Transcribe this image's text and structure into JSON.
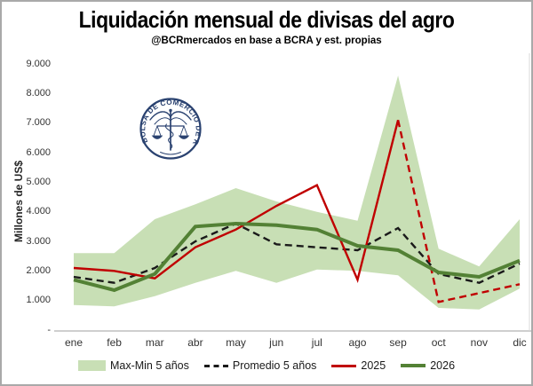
{
  "header": {
    "title": "Liquidación mensual de divisas del agro",
    "subtitle": "@BCRmercados en base a BCRA y est. propias"
  },
  "y_axis": {
    "title": "Millones de US$",
    "tick_labels": [
      "9.000",
      "8.000",
      "7.000",
      "6.000",
      "5.000",
      "4.000",
      "3.000",
      "2.000",
      "1.000",
      "-"
    ]
  },
  "x_axis": {
    "tick_labels": [
      "ene",
      "feb",
      "mar",
      "abr",
      "may",
      "jun",
      "jul",
      "ago",
      "sep",
      "oct",
      "nov",
      "dic"
    ]
  },
  "logo": {
    "text": "BOLSA DE COMERCIO DE ROSARIO",
    "color": "#2a4270"
  },
  "legend": {
    "items": [
      {
        "label": "Max-Min 5 años",
        "type": "area",
        "color": "#c8dfb5"
      },
      {
        "label": "Promedio 5 años",
        "type": "dashed-line",
        "color": "#1a1a1a"
      },
      {
        "label": "2025",
        "type": "line",
        "color": "#c00000"
      },
      {
        "label": "2026",
        "type": "thick-line",
        "color": "#538135"
      }
    ]
  },
  "colors": {
    "axis_line": "#bfbfbf",
    "plot_right_border": "#d9d9d9"
  },
  "chart_data": {
    "type": "line",
    "title": "Liquidación mensual de divisas del agro",
    "subtitle": "@BCRmercados en base a BCRA y est. propias",
    "xlabel": "",
    "ylabel": "Millones de US$",
    "ylim": [
      0,
      9000
    ],
    "grid": false,
    "legend_position": "bottom",
    "categories": [
      "ene",
      "feb",
      "mar",
      "abr",
      "may",
      "jun",
      "jul",
      "ago",
      "sep",
      "oct",
      "nov",
      "dic"
    ],
    "series": [
      {
        "name": "Max-Min 5 años",
        "type": "band",
        "color": "#c8dfb5",
        "max": [
          2600,
          2600,
          3750,
          4250,
          4800,
          4350,
          4000,
          3700,
          8600,
          2750,
          2150,
          3750
        ],
        "min": [
          850,
          800,
          1150,
          1600,
          2000,
          1600,
          2050,
          2000,
          1850,
          750,
          700,
          1400
        ]
      },
      {
        "name": "Promedio 5 años",
        "type": "line",
        "style": "dashed",
        "color": "#1a1a1a",
        "values": [
          1800,
          1600,
          2100,
          3000,
          3600,
          2900,
          2800,
          2700,
          3450,
          1900,
          1600,
          2250
        ]
      },
      {
        "name": "2025",
        "type": "line",
        "style": "solid-then-dashed",
        "dashed_from_index": 8,
        "color": "#c00000",
        "values": [
          2100,
          2000,
          1750,
          2800,
          3400,
          4200,
          4900,
          1700,
          7100,
          950,
          1250,
          1550
        ],
        "note": "dashed segment sep-dic = estimated"
      },
      {
        "name": "2026",
        "type": "line",
        "style": "solid",
        "color": "#538135",
        "values": [
          1700,
          1350,
          1900,
          3500,
          3600,
          3550,
          3400,
          2850,
          2700,
          1950,
          1800,
          2350
        ]
      }
    ]
  }
}
